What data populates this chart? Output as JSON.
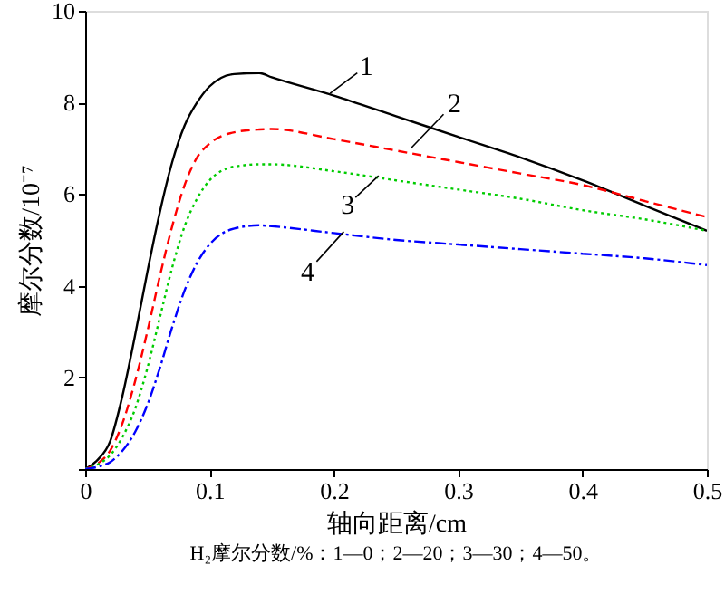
{
  "chart_data": {
    "type": "line",
    "xlabel": "轴向距离/cm",
    "ylabel": "摩尔分数/10⁻⁷",
    "xlim": [
      0,
      0.5
    ],
    "xticks": [
      0,
      0.1,
      0.2,
      0.3,
      0.4,
      0.5
    ],
    "ylim": [
      0,
      10
    ],
    "yticks": [
      {
        "value": 0,
        "label": null
      },
      2,
      4,
      6,
      8,
      10
    ],
    "x": [
      0,
      0.01,
      0.02,
      0.03,
      0.04,
      0.05,
      0.06,
      0.07,
      0.08,
      0.09,
      0.1,
      0.12,
      0.14,
      0.15,
      0.2,
      0.25,
      0.3,
      0.35,
      0.4,
      0.45,
      0.5
    ],
    "series": [
      {
        "color": "#000000",
        "line_style": "solid",
        "values": [
          0,
          0.2,
          0.6,
          1.6,
          2.9,
          4.3,
          5.6,
          6.7,
          7.5,
          8.0,
          8.35,
          8.62,
          8.64,
          8.55,
          8.15,
          7.7,
          7.25,
          6.8,
          6.3,
          5.75,
          5.2
        ]
      },
      {
        "color": "#ff0000",
        "line_style": "dashed",
        "values": [
          0,
          0.12,
          0.4,
          1.0,
          1.9,
          3.0,
          4.2,
          5.3,
          6.2,
          6.8,
          7.1,
          7.35,
          7.41,
          7.42,
          7.2,
          6.95,
          6.7,
          6.45,
          6.2,
          5.85,
          5.5
        ]
      },
      {
        "color": "#00cc00",
        "line_style": "dotted",
        "values": [
          0,
          0.1,
          0.3,
          0.7,
          1.3,
          2.2,
          3.3,
          4.4,
          5.3,
          5.9,
          6.3,
          6.6,
          6.65,
          6.65,
          6.5,
          6.3,
          6.1,
          5.9,
          5.65,
          5.45,
          5.2
        ]
      },
      {
        "color": "#0000ff",
        "line_style": "dashdot",
        "values": [
          0,
          0.05,
          0.15,
          0.4,
          0.8,
          1.4,
          2.2,
          3.1,
          3.9,
          4.5,
          4.9,
          5.25,
          5.32,
          5.3,
          5.15,
          5.0,
          4.9,
          4.8,
          4.7,
          4.6,
          4.45
        ]
      }
    ],
    "annotations": [
      {
        "text": "1",
        "x": 0.197,
        "y": 8.2
      },
      {
        "text": "2",
        "x": 0.262,
        "y": 7.0
      },
      {
        "text": "3",
        "x": 0.236,
        "y": 6.4
      },
      {
        "text": "4",
        "x": 0.208,
        "y": 5.18
      },
      "H₂摩尔分数/%：1—0；2—20；3—30；4—50。"
    ],
    "grid": false
  }
}
